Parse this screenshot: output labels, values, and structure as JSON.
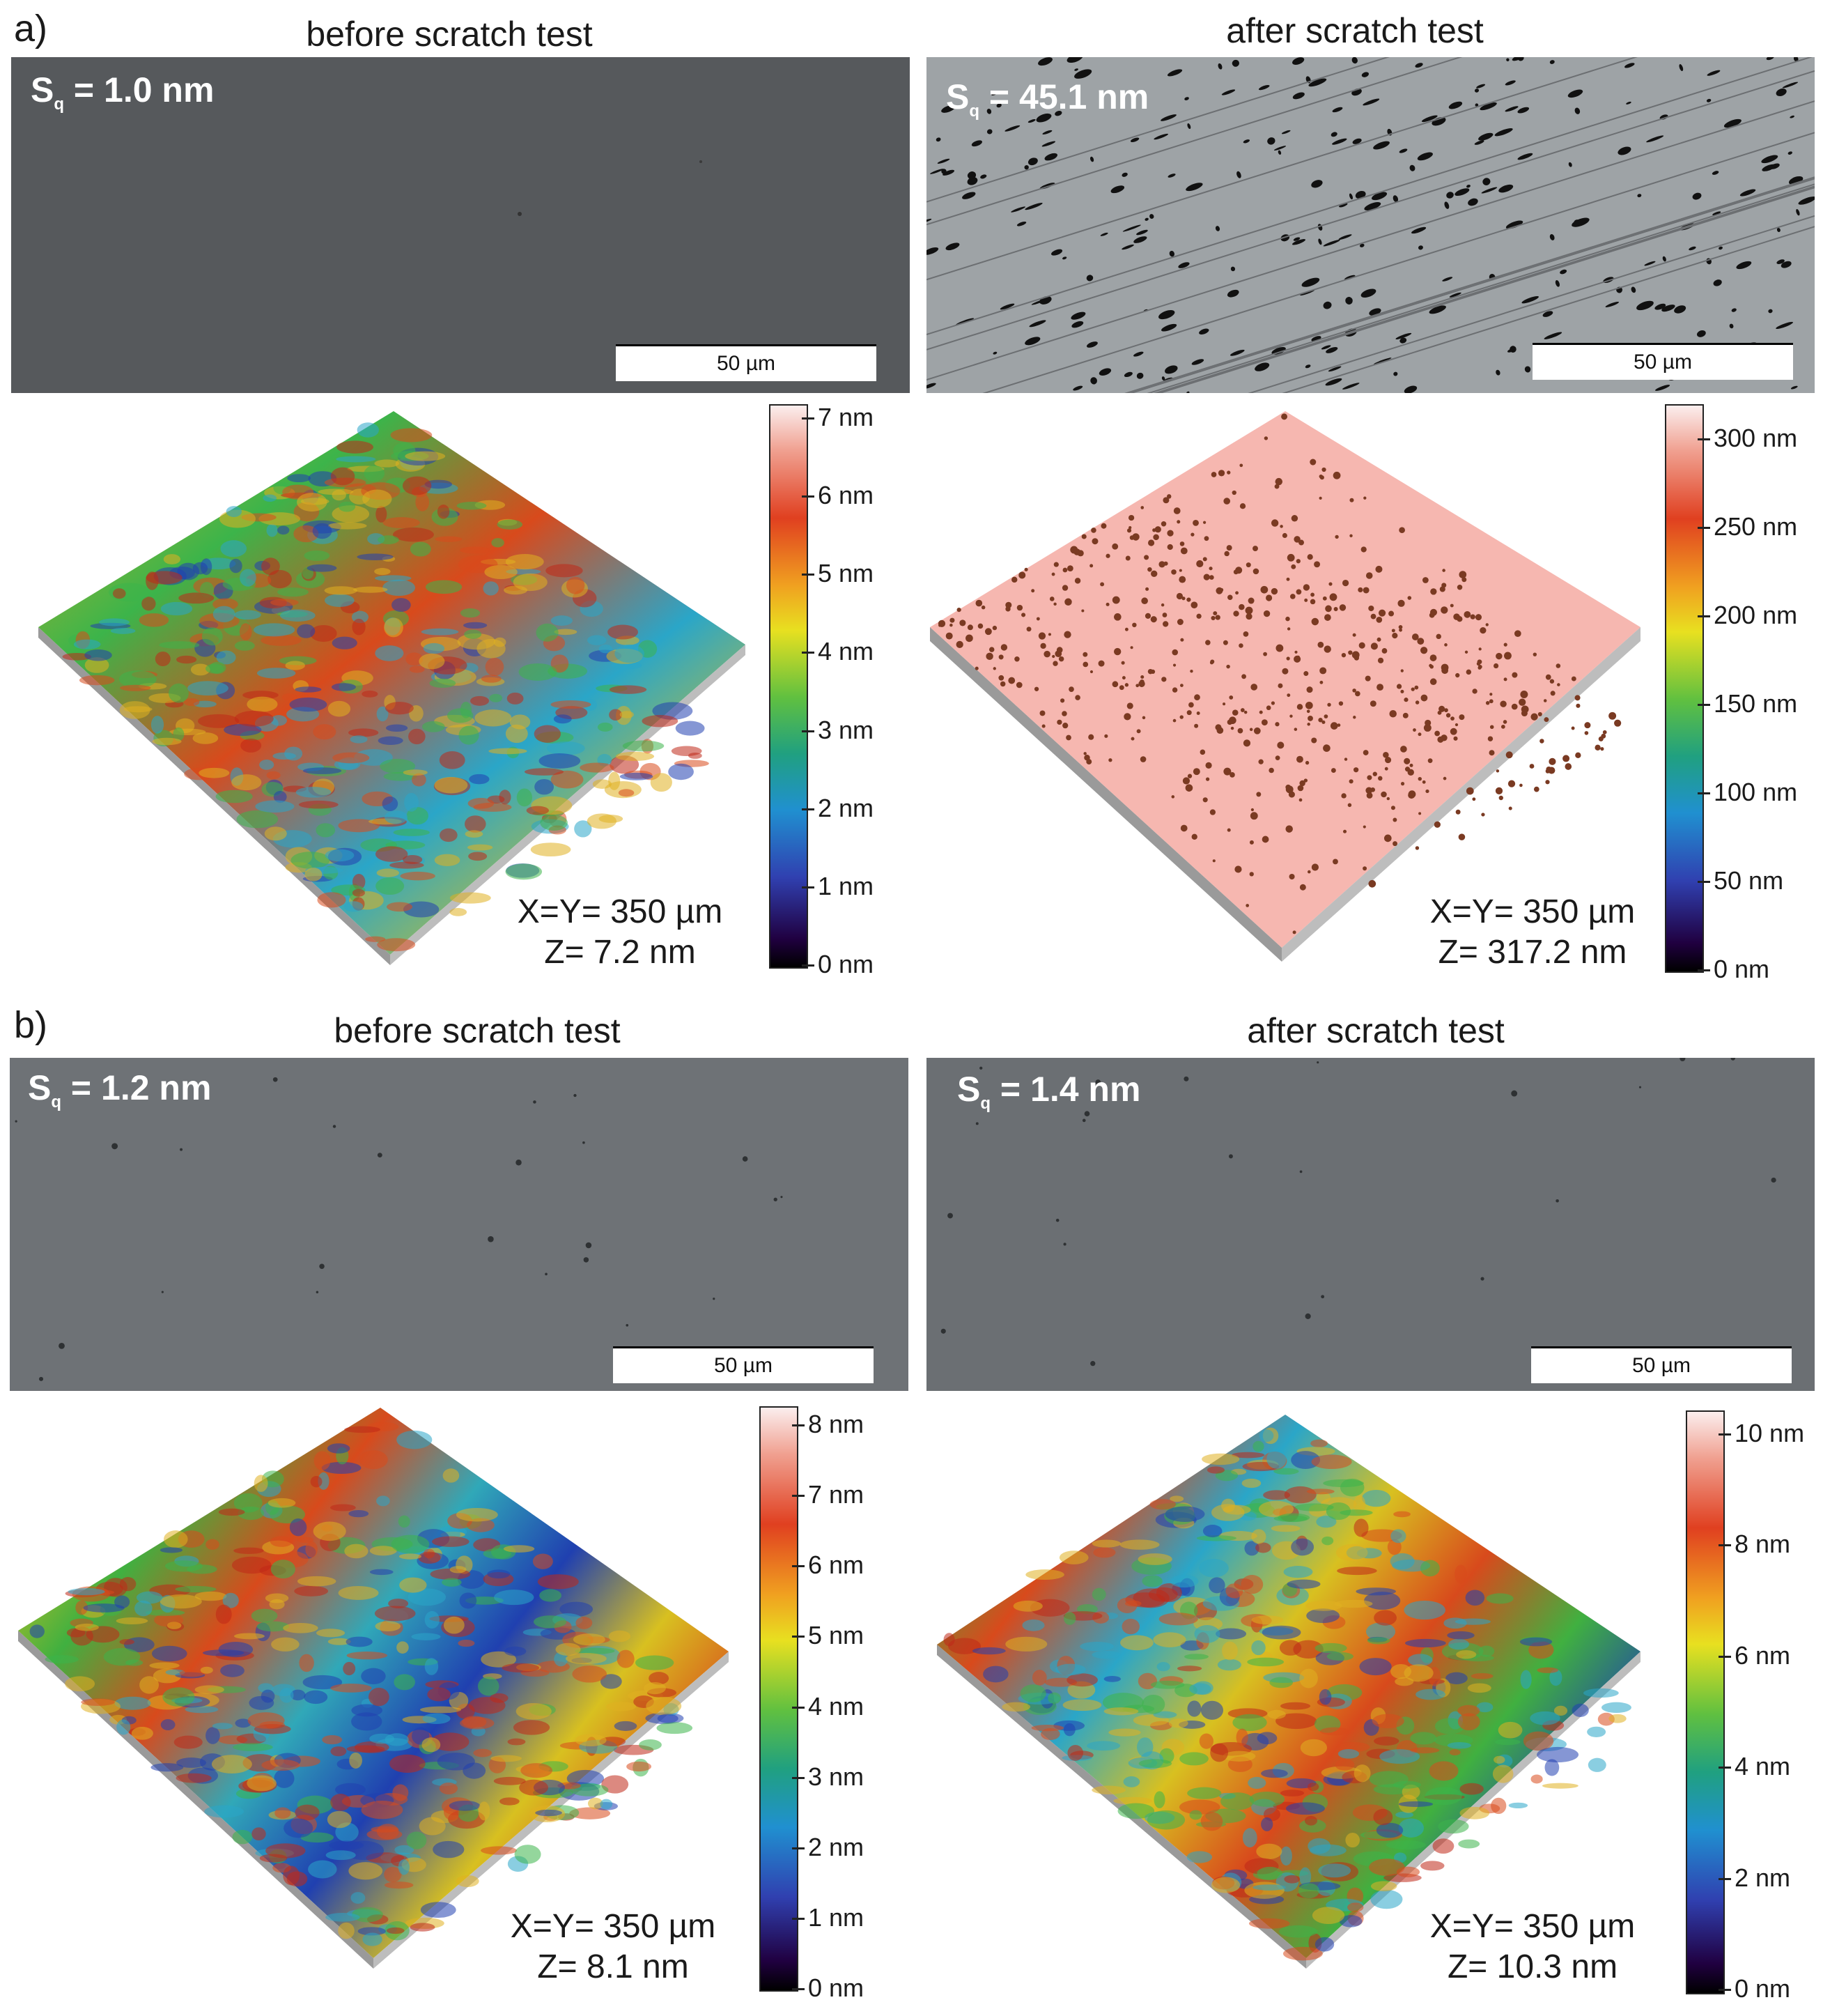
{
  "panels": [
    {
      "letter": "a)",
      "columns": [
        {
          "title": "before scratch test",
          "sq_prefix": "S",
          "sq_sub": "q",
          "sq_value": " = 1.0 nm",
          "scale_bar": "50 µm",
          "dims_xy": "X=Y= 350 µm",
          "dims_z": "Z= 7.2 nm",
          "colorbar_ticks": [
            "7 nm",
            "6 nm",
            "5 nm",
            "4 nm",
            "3 nm",
            "2 nm",
            "1 nm",
            "0 nm"
          ],
          "surface": "rough multicolor"
        },
        {
          "title": "after scratch test",
          "sq_prefix": "S",
          "sq_sub": "q",
          "sq_value": " = 45.1 nm",
          "scale_bar": "50 µm",
          "dims_xy": "X=Y= 350 µm",
          "dims_z": "Z= 317.2 nm",
          "colorbar_ticks": [
            "300 nm",
            "250 nm",
            "200 nm",
            "150 nm",
            "100 nm",
            "50 nm",
            "0 nm"
          ],
          "surface": "pink with dark debris"
        }
      ]
    },
    {
      "letter": "b)",
      "columns": [
        {
          "title": "before scratch test",
          "sq_prefix": "S",
          "sq_sub": "q",
          "sq_value": " = 1.2 nm",
          "scale_bar": "50 µm",
          "dims_xy": "X=Y= 350 µm",
          "dims_z": "Z= 8.1 nm",
          "colorbar_ticks": [
            "8 nm",
            "7 nm",
            "6 nm",
            "5 nm",
            "4 nm",
            "3 nm",
            "2 nm",
            "1 nm",
            "0 nm"
          ],
          "surface": "striped multicolor"
        },
        {
          "title": "after scratch test",
          "sq_prefix": "S",
          "sq_sub": "q",
          "sq_value": " = 1.4 nm",
          "scale_bar": "50 µm",
          "dims_xy": "X=Y= 350 µm",
          "dims_z": "Z= 10.3 nm",
          "colorbar_ticks": [
            "10 nm",
            "8 nm",
            "6 nm",
            "4 nm",
            "2 nm",
            "0 nm"
          ],
          "surface": "striped multicolor"
        }
      ]
    }
  ],
  "colors": {
    "micrograph_dark": "#56595c",
    "micrograph_light": "#9ea3a6",
    "debris": "#111111",
    "surface_pink": "#f6b7b0",
    "surface_debris": "#7a3a22"
  }
}
